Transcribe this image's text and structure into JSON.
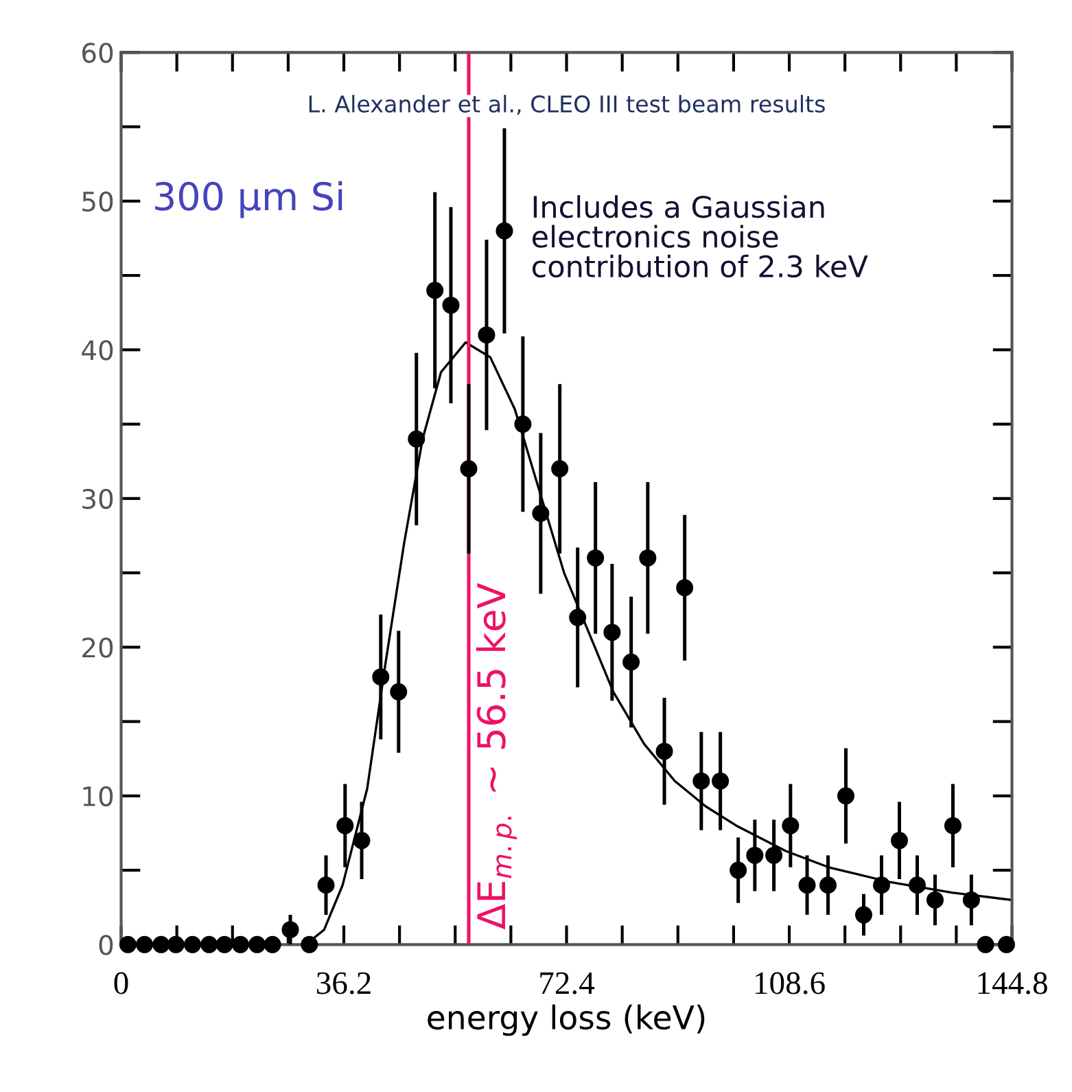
{
  "chart_data": {
    "type": "scatter",
    "xlabel": "energy loss (keV)",
    "xlim": [
      0,
      144.8
    ],
    "ylim": [
      0,
      60
    ],
    "xticks": [
      0,
      {
        "value": 9.05,
        "label": null
      },
      {
        "value": 18.1,
        "label": null
      },
      {
        "value": 27.15,
        "label": null
      },
      36.2,
      {
        "value": 45.25,
        "label": null
      },
      {
        "value": 54.3,
        "label": null
      },
      {
        "value": 63.35,
        "label": null
      },
      72.4,
      {
        "value": 81.45,
        "label": null
      },
      {
        "value": 90.5,
        "label": null
      },
      {
        "value": 99.55,
        "label": null
      },
      108.6,
      {
        "value": 117.65,
        "label": null
      },
      {
        "value": 126.7,
        "label": null
      },
      {
        "value": 135.75,
        "label": null
      },
      144.8
    ],
    "yticks": [
      0,
      {
        "value": 5,
        "label": null
      },
      10,
      {
        "value": 15,
        "label": null
      },
      20,
      {
        "value": 25,
        "label": null
      },
      30,
      {
        "value": 35,
        "label": null
      },
      40,
      {
        "value": 45,
        "label": null
      },
      50,
      {
        "value": 55,
        "label": null
      },
      60
    ],
    "grid": false,
    "legend": false,
    "series": [
      {
        "color": "#000000",
        "marker": "circle",
        "x": [
          1.1,
          3.8,
          6.5,
          8.9,
          11.6,
          14.3,
          16.8,
          19.4,
          22.1,
          24.6,
          27.5,
          30.6,
          33.3,
          36.4,
          39.1,
          42.2,
          45.1,
          48.0,
          51.0,
          53.6,
          56.5,
          59.4,
          62.3,
          65.3,
          68.2,
          71.3,
          74.2,
          77.1,
          79.8,
          82.9,
          85.6,
          88.3,
          91.6,
          94.3,
          97.4,
          100.3,
          103.0,
          106.1,
          108.8,
          111.5,
          114.9,
          117.8,
          120.7,
          123.6,
          126.5,
          129.4,
          132.3,
          135.2,
          138.2,
          140.5,
          143.9
        ],
        "values": [
          0,
          0,
          0,
          0,
          0,
          0,
          0,
          0,
          0,
          0,
          1,
          0,
          4,
          8,
          7,
          18,
          17,
          34,
          44,
          43,
          32,
          41,
          48,
          35,
          29,
          32,
          22,
          26,
          21,
          19,
          26,
          13,
          24,
          11,
          11,
          5,
          6,
          6,
          8,
          4,
          4,
          10,
          2,
          4,
          7,
          4,
          3,
          8,
          3,
          0,
          0
        ],
        "errors": [
          null,
          null,
          null,
          null,
          null,
          null,
          null,
          null,
          null,
          null,
          1,
          null,
          2,
          2.8,
          2.6,
          4.2,
          4.1,
          5.8,
          6.6,
          6.6,
          5.7,
          6.4,
          6.9,
          5.9,
          5.4,
          5.7,
          4.7,
          5.1,
          4.6,
          4.4,
          5.1,
          3.6,
          4.9,
          3.3,
          3.3,
          2.2,
          2.4,
          2.4,
          2.8,
          2,
          2,
          3.2,
          1.4,
          2,
          2.6,
          2,
          1.7,
          2.8,
          1.7,
          null,
          null
        ]
      },
      {
        "type": "line",
        "color": "#000000",
        "marker": "none",
        "line_style": "solid",
        "x": [
          30,
          33,
          36,
          40,
          43,
          46,
          49,
          52,
          56,
          60,
          64,
          68,
          72,
          76,
          80,
          85,
          90,
          95,
          100,
          108,
          115,
          125,
          135,
          144.8
        ],
        "values": [
          0,
          1,
          4,
          10.5,
          19,
          27,
          34,
          38.5,
          40.5,
          39.5,
          36,
          30.5,
          25,
          21,
          17,
          13.5,
          11,
          9.3,
          8,
          6.3,
          5.2,
          4.2,
          3.5,
          3.0
        ]
      }
    ],
    "ref_lines": [
      {
        "axis": "x",
        "value": 56.5,
        "label": "ΔE$_{m.p.}$ ~ 56.5 keV",
        "color": "#ee1166",
        "line_style": "solid"
      }
    ],
    "annotations": [
      "L. Alexander et al., CLEO III test beam results",
      "300 μm Si",
      "Includes a Gaussian\nelectronics noise\ncontribution of 2.3 keV"
    ]
  }
}
